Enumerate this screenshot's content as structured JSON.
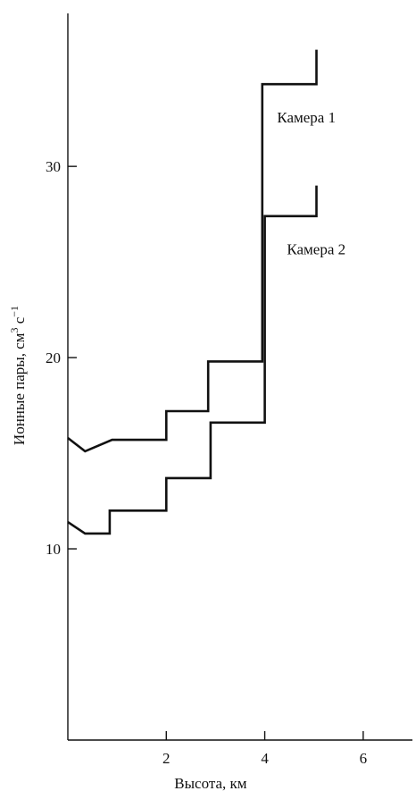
{
  "chart_data": {
    "type": "line",
    "title": "",
    "xlabel": "Высота, км",
    "ylabel_main": "Ионные пары, см",
    "ylabel_sup1": "3",
    "ylabel_mid": " с",
    "ylabel_sup2": "−1",
    "xlim": [
      0,
      7
    ],
    "ylim": [
      0,
      38
    ],
    "x_ticks": [
      2,
      4,
      6
    ],
    "x_tick_labels": [
      "2",
      "4",
      "6"
    ],
    "y_ticks": [
      10,
      20,
      30
    ],
    "y_tick_labels": [
      "10",
      "20",
      "30"
    ],
    "grid": false,
    "series": [
      {
        "name": "Камера 1",
        "step": true,
        "points": [
          [
            0,
            15.8
          ],
          [
            0.35,
            15.1
          ],
          [
            0.9,
            15.7
          ],
          [
            2.0,
            15.7
          ],
          [
            2.0,
            17.2
          ],
          [
            2.85,
            17.2
          ],
          [
            2.85,
            19.8
          ],
          [
            3.95,
            19.8
          ],
          [
            3.95,
            34.3
          ],
          [
            5.05,
            34.3
          ],
          [
            5.05,
            36.1
          ]
        ]
      },
      {
        "name": "Камера 2",
        "step": true,
        "points": [
          [
            0,
            11.4
          ],
          [
            0.35,
            10.8
          ],
          [
            0.85,
            10.8
          ],
          [
            0.85,
            12.0
          ],
          [
            2.0,
            12.0
          ],
          [
            2.0,
            13.7
          ],
          [
            2.9,
            13.7
          ],
          [
            2.9,
            16.6
          ],
          [
            4.0,
            16.6
          ],
          [
            4.0,
            27.4
          ],
          [
            5.05,
            27.4
          ],
          [
            5.05,
            29.0
          ]
        ]
      }
    ]
  }
}
